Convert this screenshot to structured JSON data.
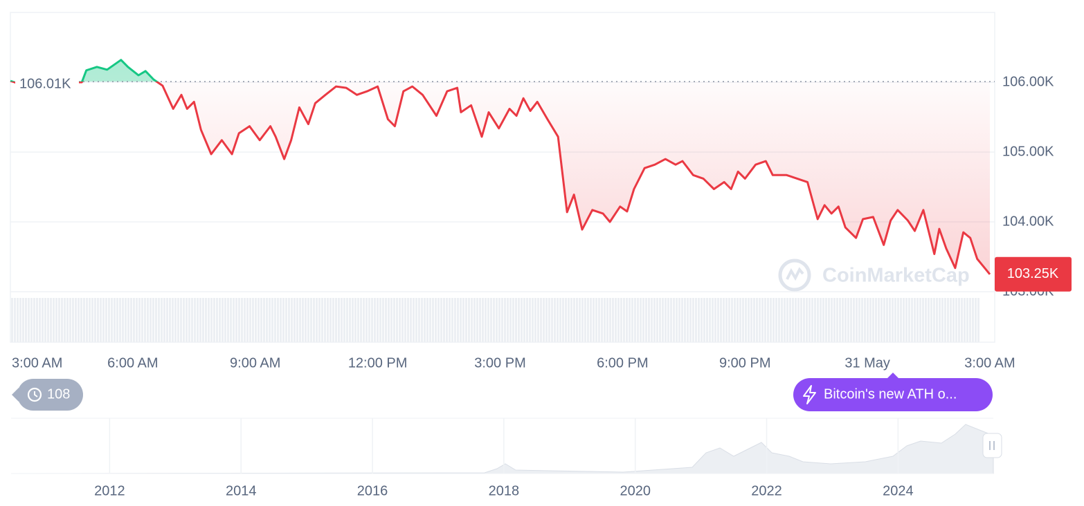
{
  "chart_data": {
    "type": "line",
    "x": [
      0,
      0.25,
      0.76,
      1.27,
      1.75,
      1.86,
      2.12,
      2.37,
      2.71,
      2.88,
      3.14,
      3.31,
      3.51,
      3.73,
      3.99,
      4.19,
      4.33,
      4.5,
      4.67,
      4.92,
      5.18,
      5.43,
      5.6,
      5.86,
      6.11,
      6.37,
      6.5,
      6.71,
      6.88,
      7.08,
      7.3,
      7.47,
      7.72,
      7.98,
      8.23,
      8.49,
      8.74,
      9,
      9.25,
      9.42,
      9.63,
      9.85,
      10.1,
      10.44,
      10.7,
      10.95,
      11.04,
      11.29,
      11.55,
      11.72,
      11.97,
      12.23,
      12.4,
      12.57,
      12.74,
      12.91,
      13.16,
      13.42,
      13.64,
      13.81,
      14.01,
      14.26,
      14.52,
      14.69,
      14.94,
      15.11,
      15.28,
      15.54,
      15.79,
      16.05,
      16.3,
      16.47,
      16.73,
      16.98,
      17.24,
      17.49,
      17.66,
      17.83,
      18,
      18.26,
      18.51,
      18.68,
      19.02,
      19.28,
      19.53,
      19.78,
      19.95,
      20.12,
      20.29,
      20.46,
      20.72,
      20.89,
      21.14,
      21.4,
      21.57,
      21.74,
      21.99,
      22.16,
      22.37,
      22.64,
      22.76,
      22.93,
      23.15,
      23.35,
      23.52,
      23.69,
      24
    ],
    "values": [
      106020,
      105970,
      105980,
      106000,
      106000,
      106170,
      106220,
      106180,
      106320,
      106220,
      106100,
      106160,
      106040,
      105950,
      105620,
      105820,
      105620,
      105720,
      105320,
      104970,
      105170,
      104970,
      105270,
      105370,
      105170,
      105370,
      105220,
      104900,
      105170,
      105640,
      105400,
      105700,
      105820,
      105940,
      105920,
      105820,
      105870,
      105940,
      105470,
      105370,
      105870,
      105940,
      105820,
      105520,
      105870,
      105920,
      105570,
      105670,
      105220,
      105570,
      105340,
      105620,
      105520,
      105770,
      105590,
      105720,
      105470,
      105220,
      104140,
      104390,
      103890,
      104170,
      104120,
      104000,
      104220,
      104150,
      104470,
      104770,
      104820,
      104900,
      104820,
      104870,
      104670,
      104620,
      104470,
      104570,
      104470,
      104720,
      104620,
      104820,
      104870,
      104670,
      104670,
      104620,
      104570,
      104040,
      104240,
      104120,
      104220,
      103920,
      103770,
      104040,
      104070,
      103670,
      104020,
      104170,
      104020,
      103870,
      104170,
      103540,
      103900,
      103620,
      103340,
      103850,
      103770,
      103470,
      103250
    ],
    "color_up": "#16c784",
    "color_down": "#ea3943",
    "xlim": [
      0,
      24
    ],
    "xticks": [
      {
        "value": 0,
        "label": "3:00 AM"
      },
      {
        "value": 3,
        "label": "6:00 AM"
      },
      {
        "value": 6,
        "label": "9:00 AM"
      },
      {
        "value": 9,
        "label": "12:00 PM"
      },
      {
        "value": 12,
        "label": "3:00 PM"
      },
      {
        "value": 15,
        "label": "6:00 PM"
      },
      {
        "value": 18,
        "label": "9:00 PM"
      },
      {
        "value": 21,
        "label": "31 May"
      },
      {
        "value": 24,
        "label": "3:00 AM"
      }
    ],
    "ylim": [
      103000,
      107000
    ],
    "yticks": [
      {
        "value": 103000,
        "label": "103.00K"
      },
      {
        "value": 104000,
        "label": "104.00K"
      },
      {
        "value": 105000,
        "label": "105.00K"
      },
      {
        "value": 106000,
        "label": "106.00K"
      }
    ],
    "grid": true,
    "reference": {
      "value": 106010,
      "label": "106.01K"
    },
    "last_label": "103.25K",
    "watermark": "CoinMarketCap",
    "navigator": {
      "xlim": [
        2010.5,
        2025.45
      ],
      "xticks": [
        2012,
        2014,
        2016,
        2018,
        2020,
        2022,
        2024
      ]
    }
  },
  "controls": {
    "history_count": 108,
    "news_button": "Bitcoin's new ATH o..."
  }
}
